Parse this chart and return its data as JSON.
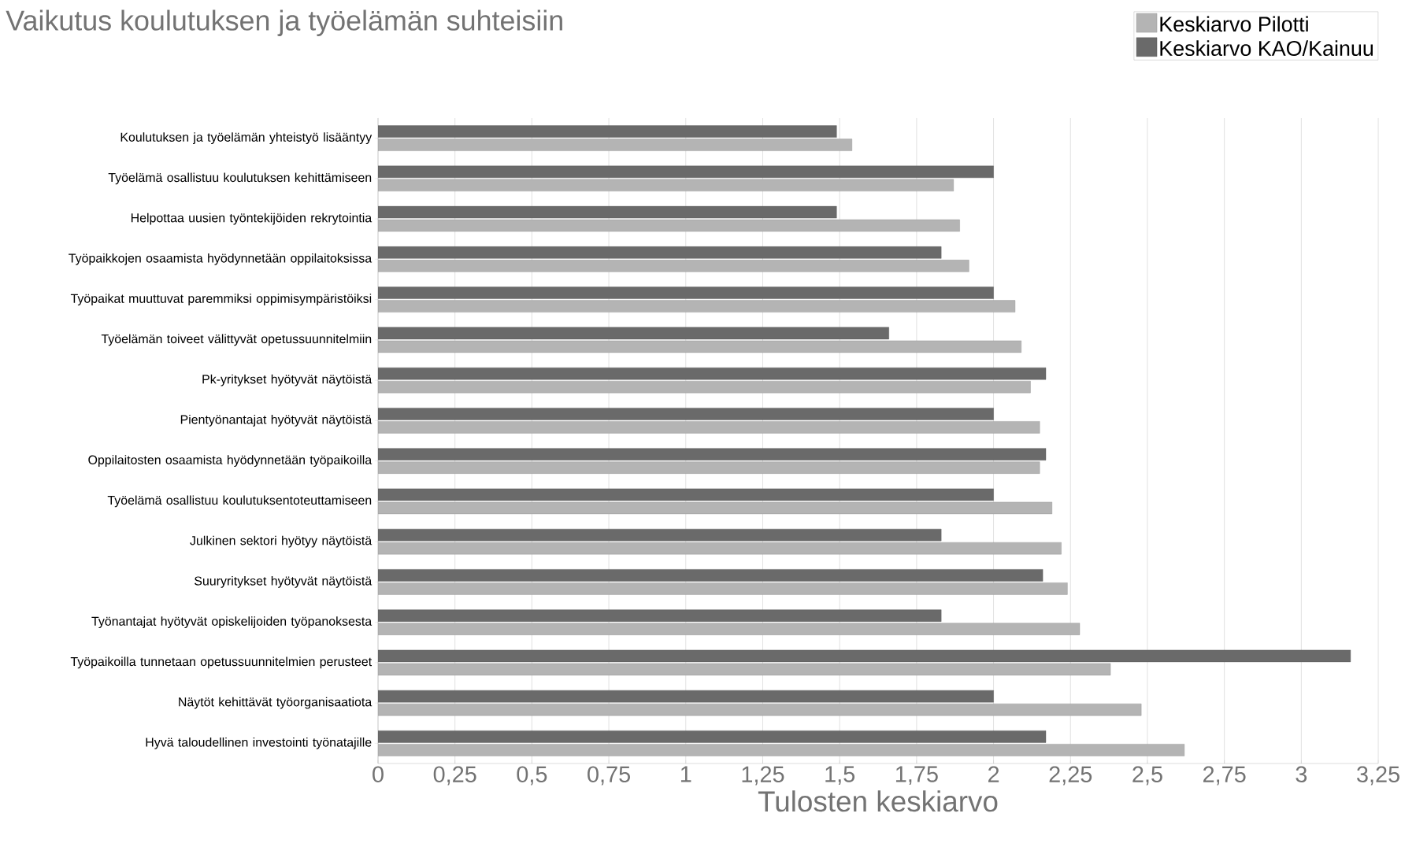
{
  "chart_data": {
    "type": "bar",
    "orientation": "horizontal",
    "title": "Vaikutus koulutuksen ja työelämän suhteisiin",
    "xlabel": "Tulosten keskiarvo",
    "categories": [
      "Koulutuksen ja työelämän yhteistyö lisääntyy",
      "Työelämä osallistuu koulutuksen kehittämiseen",
      "Helpottaa uusien työntekijöiden rekrytointia",
      "Työpaikkojen osaamista hyödynnetään oppilaitoksissa",
      "Työpaikat muuttuvat paremmiksi oppimisympäristöiksi",
      "Työelämän toiveet välittyvät opetussuunnitelmiin",
      "Pk-yritykset hyötyvät näytöistä",
      "Pientyönantajat hyötyvät näytöistä",
      "Oppilaitosten osaamista hyödynnetään työpaikoilla",
      "Työelämä osallistuu koulutuksentoteuttamiseen",
      "Julkinen sektori hyötyy näytöistä",
      "Suuryritykset hyötyvät näytöistä",
      "Työnantajat hyötyvät opiskelijoiden työpanoksesta",
      "Työpaikoilla tunnetaan opetussuunnitelmien perusteet",
      "Näytöt kehittävät työorganisaatiota",
      "Hyvä taloudellinen investointi työnatajille"
    ],
    "series": [
      {
        "name": "Keskiarvo Pilotti",
        "color": "#b4b4b4",
        "values": [
          1.54,
          1.87,
          1.89,
          1.92,
          2.07,
          2.09,
          2.12,
          2.15,
          2.15,
          2.19,
          2.22,
          2.24,
          2.28,
          2.38,
          2.48,
          2.62
        ]
      },
      {
        "name": "Keskiarvo KAO/Kainuu",
        "color": "#6a6a6a",
        "values": [
          1.49,
          2.0,
          1.49,
          1.83,
          2.0,
          1.66,
          2.17,
          2.0,
          2.17,
          2.0,
          1.83,
          2.16,
          1.83,
          3.16,
          2.0,
          2.17
        ]
      }
    ],
    "xlim": [
      0,
      3.25
    ],
    "xticks": [
      0,
      {
        "value": 0.25,
        "label": "0,25"
      },
      {
        "value": 0.5,
        "label": "0,5"
      },
      {
        "value": 0.75,
        "label": "0,75"
      },
      1,
      {
        "value": 1.25,
        "label": "1,25"
      },
      {
        "value": 1.5,
        "label": "1,5"
      },
      {
        "value": 1.75,
        "label": "1,75"
      },
      2,
      {
        "value": 2.25,
        "label": "2,25"
      },
      {
        "value": 2.5,
        "label": "2,5"
      },
      {
        "value": 2.75,
        "label": "2,75"
      },
      3,
      {
        "value": 3.25,
        "label": "3,25"
      }
    ],
    "grid": "x",
    "legend": "top right"
  }
}
